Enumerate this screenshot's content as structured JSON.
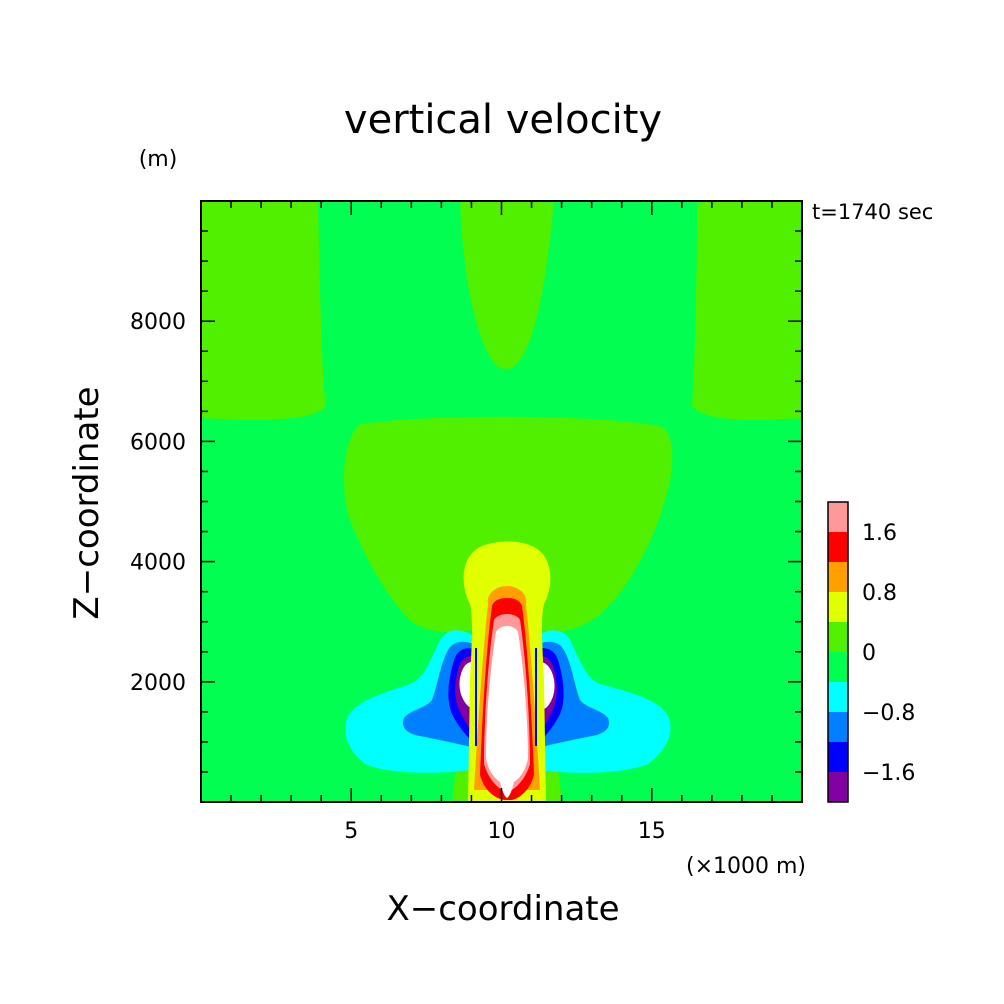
{
  "chart_data": {
    "type": "heatmap",
    "title": "vertical velocity",
    "xlabel": "X−coordinate",
    "ylabel": "Z−coordinate",
    "x_unit": "(×1000 m)",
    "y_unit": "(m)",
    "time_label": "t=1740 sec",
    "xlim": [
      0,
      20
    ],
    "ylim": [
      0,
      10000
    ],
    "x_ticks": [
      5,
      10,
      15
    ],
    "y_ticks": [
      2000,
      4000,
      6000,
      8000
    ],
    "x_tick_labels": [
      "5",
      "10",
      "15"
    ],
    "y_tick_labels": [
      "2000",
      "4000",
      "6000",
      "8000"
    ],
    "colorbar": {
      "levels": [
        -2.0,
        -1.6,
        -1.2,
        -0.8,
        -0.4,
        0,
        0.4,
        0.8,
        1.2,
        1.6,
        2.0
      ],
      "colors": [
        "#8000a0",
        "#0000ff",
        "#0080ff",
        "#00ffff",
        "#00ff50",
        "#50f000",
        "#e0ff00",
        "#ffa000",
        "#ff0000",
        "#ff9999"
      ],
      "tick_labels": [
        "−1.6",
        "−0.8",
        "0",
        "0.8",
        "1.6"
      ],
      "tick_values": [
        -1.6,
        -0.8,
        0,
        0.8,
        1.6
      ],
      "over_color": "#ffffff"
    },
    "background_color": "#00ff50",
    "grid": false
  }
}
